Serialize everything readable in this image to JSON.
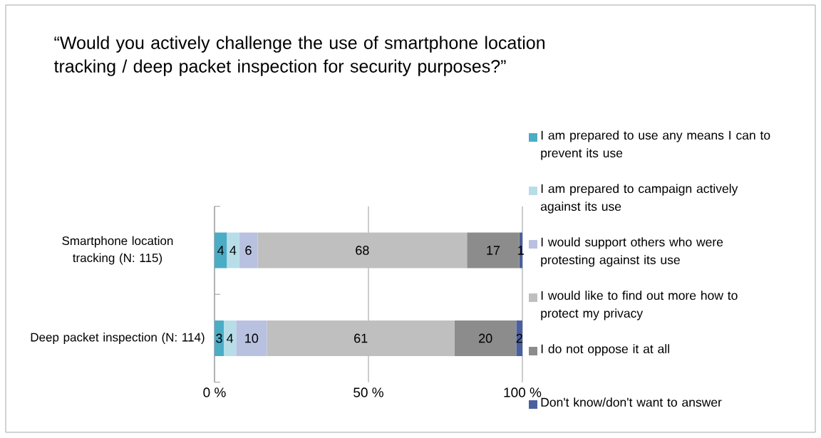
{
  "chart_data": {
    "type": "bar",
    "orientation": "horizontal",
    "stacked": true,
    "title": "“Would you actively challenge the use of smartphone location tracking / deep packet inspection for security purposes?”",
    "categories": [
      "Smartphone location tracking (N: 115)",
      "Deep packet inspection (N: 114)"
    ],
    "series": [
      {
        "name": "I am prepared to use any means I can to prevent its use",
        "color": "#4bacc6",
        "values": [
          4,
          3
        ],
        "value_labels": [
          "4",
          "3"
        ]
      },
      {
        "name": "I am prepared to campaign actively against its use",
        "color": "#b7dee8",
        "values": [
          4,
          4
        ],
        "value_labels": [
          "4",
          "4"
        ]
      },
      {
        "name": "I would support others who were protesting against its use",
        "color": "#b9c1e0",
        "values": [
          6,
          10
        ],
        "value_labels": [
          "6",
          "10"
        ]
      },
      {
        "name": "I would like to find out more how to protect my privacy",
        "color": "#bfbfbf",
        "values": [
          68,
          61
        ],
        "value_labels": [
          "68",
          "61"
        ]
      },
      {
        "name": "I do not oppose it at all",
        "color": "#8c8c8c",
        "values": [
          17,
          20
        ],
        "value_labels": [
          "17",
          "20"
        ]
      },
      {
        "name": "Don't know/don't want to answer",
        "color": "#4a5fa0",
        "values": [
          1,
          2
        ],
        "value_labels": [
          "1",
          "2"
        ]
      }
    ],
    "xlim": [
      0,
      100
    ],
    "xticks": [
      {
        "value": 0,
        "label": "0 %"
      },
      {
        "value": 50,
        "label": "50 %"
      },
      {
        "value": 100,
        "label": "100 %"
      }
    ],
    "grid": "x",
    "legend": "right"
  }
}
